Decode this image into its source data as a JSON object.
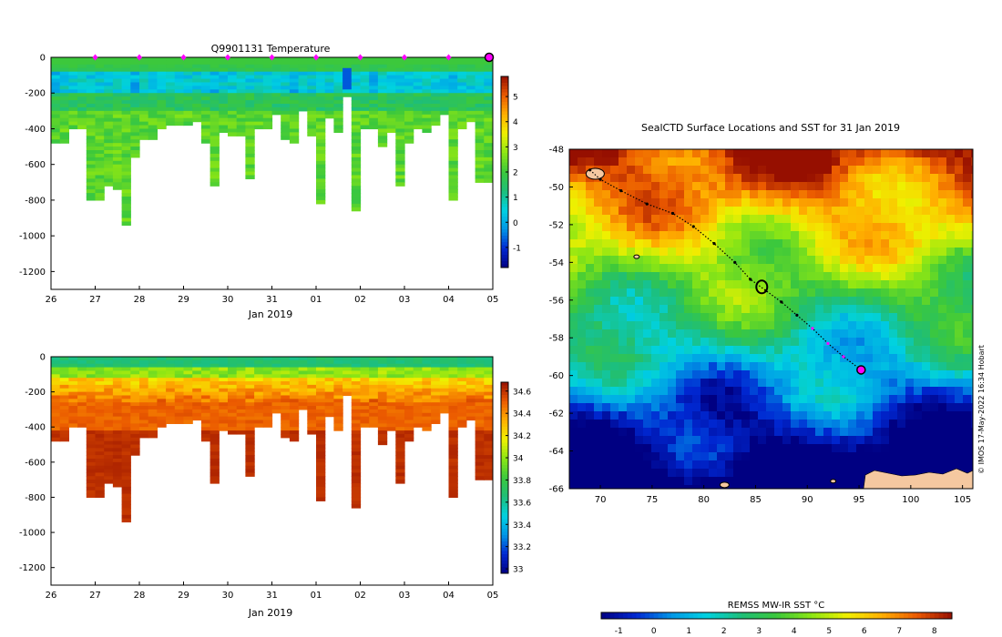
{
  "temperature_panel": {
    "title": "Q9901131  Temperature",
    "xlabel": "Jan 2019",
    "x_ticks": [
      "26",
      "27",
      "28",
      "29",
      "30",
      "31",
      "01",
      "02",
      "03",
      "04",
      "05"
    ],
    "y_ticks": [
      "0",
      "-200",
      "-400",
      "-600",
      "-800",
      "-1000",
      "-1200"
    ],
    "colorbar_ticks": [
      "5",
      "4",
      "3",
      "2",
      "1",
      "0",
      "-1"
    ],
    "marker_color": "#ff00ff"
  },
  "salinity_panel": {
    "xlabel": "Jan 2019",
    "x_ticks": [
      "26",
      "27",
      "28",
      "29",
      "30",
      "31",
      "01",
      "02",
      "03",
      "04",
      "05"
    ],
    "y_ticks": [
      "0",
      "-200",
      "-400",
      "-600",
      "-800",
      "-1000",
      "-1200"
    ],
    "colorbar_ticks": [
      "34.6",
      "34.4",
      "34.2",
      "34",
      "33.8",
      "33.6",
      "33.4",
      "33.2",
      "33"
    ]
  },
  "map_panel": {
    "title": "SealCTD Surface Locations and SST for 31 Jan 2019",
    "x_ticks": [
      "70",
      "75",
      "80",
      "85",
      "90",
      "95",
      "100",
      "105"
    ],
    "y_ticks": [
      "-48",
      "-50",
      "-52",
      "-54",
      "-56",
      "-58",
      "-60",
      "-62",
      "-64",
      "-66"
    ],
    "colorbar_title": "REMSS MW-IR SST °C",
    "colorbar_ticks": [
      "-1",
      "0",
      "1",
      "2",
      "3",
      "4",
      "5",
      "6",
      "7",
      "8"
    ],
    "credit": "© IMOS 17-May-2022 16:34 Hobart"
  },
  "chart_data": [
    {
      "type": "heatmap",
      "title": "Q9901131  Temperature",
      "xlabel": "Jan 2019",
      "ylabel": "",
      "xlim": [
        26,
        36
      ],
      "ylim": [
        -1300,
        0
      ],
      "colorbar": {
        "min": -1.8,
        "max": 5.8,
        "ticks": [
          5,
          4,
          3,
          2,
          1,
          0,
          -1
        ]
      },
      "profile_max_depth": [
        -470,
        -470,
        -400,
        -400,
        -790,
        -790,
        -710,
        -730,
        -940,
        -560,
        -450,
        -450,
        -400,
        -380,
        -370,
        -380,
        -350,
        -470,
        -710,
        -410,
        -430,
        -440,
        -670,
        -400,
        -390,
        -320,
        -450,
        -480,
        -300,
        -430,
        -810,
        -340,
        -420,
        -220,
        -860,
        -400,
        -400,
        -490,
        -420,
        -720,
        -480,
        -400,
        -420,
        -380,
        -320,
        -790,
        -390,
        -360,
        -690,
        -690
      ],
      "surface_markers_x": [
        27,
        28,
        29,
        30,
        31,
        32,
        33,
        34,
        35,
        36
      ]
    },
    {
      "type": "heatmap",
      "title": "",
      "xlabel": "Jan 2019",
      "ylabel": "",
      "xlim": [
        26,
        36
      ],
      "ylim": [
        -1300,
        0
      ],
      "colorbar": {
        "min": 32.96,
        "max": 34.68,
        "ticks": [
          34.6,
          34.4,
          34.2,
          34,
          33.8,
          33.6,
          33.4,
          33.2,
          33
        ]
      },
      "profile_max_depth": [
        -470,
        -470,
        -400,
        -400,
        -790,
        -790,
        -710,
        -730,
        -940,
        -560,
        -450,
        -450,
        -400,
        -380,
        -370,
        -380,
        -350,
        -470,
        -710,
        -410,
        -430,
        -440,
        -670,
        -400,
        -390,
        -320,
        -450,
        -480,
        -300,
        -430,
        -810,
        -340,
        -420,
        -220,
        -860,
        -400,
        -400,
        -490,
        -420,
        -720,
        -480,
        -400,
        -420,
        -380,
        -320,
        -790,
        -390,
        -360,
        -690,
        -690
      ]
    },
    {
      "type": "heatmap",
      "title": "SealCTD Surface Locations and SST for 31 Jan 2019",
      "xlabel": "",
      "ylabel": "",
      "xlim": [
        67,
        106
      ],
      "ylim": [
        -66,
        -48
      ],
      "colorbar": {
        "title": "REMSS MW-IR SST °C",
        "min": -1.5,
        "max": 8.5,
        "ticks": [
          -1,
          0,
          1,
          2,
          3,
          4,
          5,
          6,
          7,
          8
        ]
      },
      "track": {
        "lon": [
          69,
          70,
          72,
          74.5,
          77,
          79,
          81,
          83,
          84.5,
          86,
          87.5,
          89,
          90.5,
          92,
          93.5,
          95.2
        ],
        "lat": [
          -49.1,
          -49.6,
          -50.2,
          -50.9,
          -51.4,
          -52.1,
          -53.0,
          -54.0,
          -54.9,
          -55.5,
          -56.1,
          -56.8,
          -57.5,
          -58.3,
          -59.0,
          -59.7
        ]
      },
      "current_position": {
        "lon": 95.2,
        "lat": -59.7
      }
    }
  ]
}
